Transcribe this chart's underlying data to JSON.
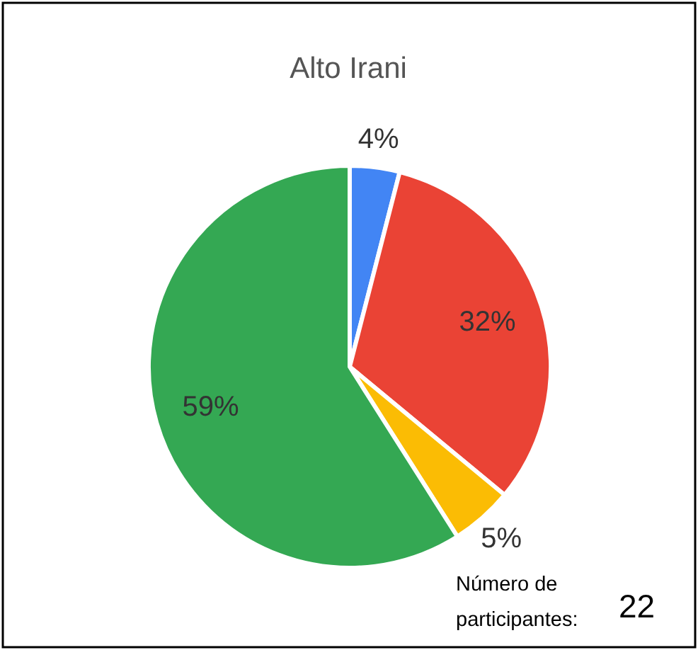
{
  "chart_data": {
    "type": "pie",
    "title": "Alto Irani",
    "categories": [
      null,
      null,
      null,
      null
    ],
    "values": [
      4,
      32,
      5,
      59
    ],
    "colors": [
      "#4285f4",
      "#ea4335",
      "#fbbc04",
      "#34a853"
    ],
    "value_labels": [
      "4%",
      "32%",
      "5%",
      "59%"
    ],
    "annotations": [
      "Número de participantes:",
      "22"
    ]
  }
}
